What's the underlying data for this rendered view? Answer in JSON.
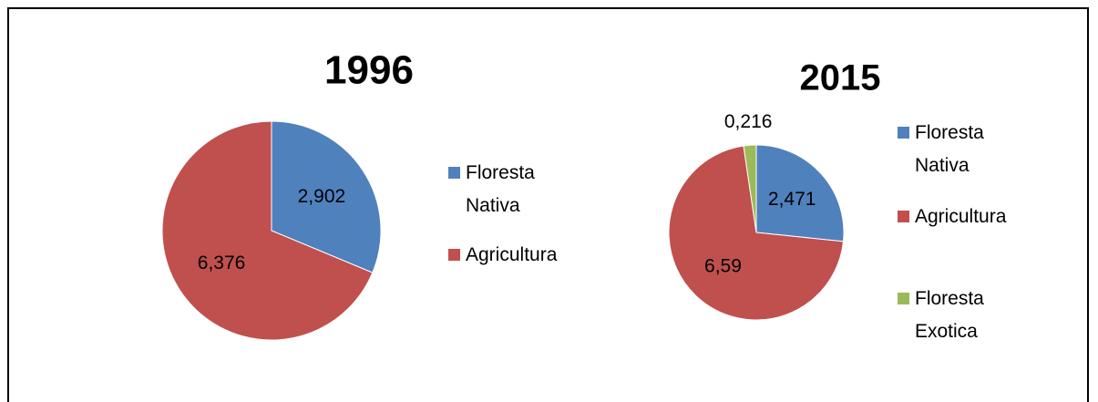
{
  "chart_data": [
    {
      "type": "pie",
      "title": "1996",
      "categories": [
        "Floresta Nativa",
        "Agricultura"
      ],
      "values": [
        2.902,
        6.376
      ],
      "value_labels": [
        "2,902",
        "6,376"
      ],
      "colors": [
        "#4f81bd",
        "#c0504d"
      ]
    },
    {
      "type": "pie",
      "title": "2015",
      "categories": [
        "Floresta Nativa",
        "Agricultura",
        "Floresta Exotica"
      ],
      "values": [
        2.471,
        6.59,
        0.216
      ],
      "value_labels": [
        "2,471",
        "6,59",
        "0,216"
      ],
      "colors": [
        "#4f81bd",
        "#c0504d",
        "#9bbb59"
      ]
    }
  ]
}
